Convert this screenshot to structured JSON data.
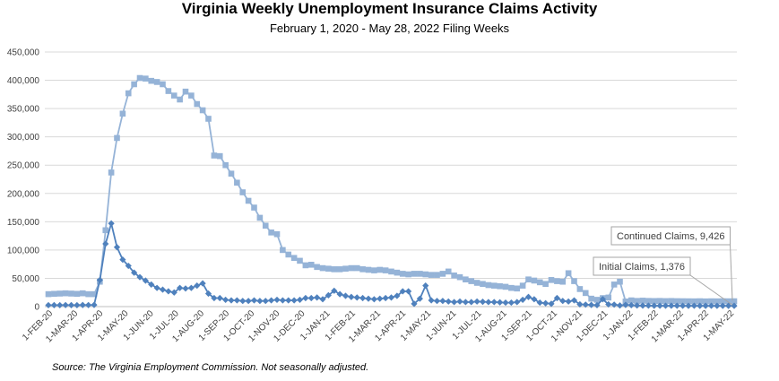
{
  "title": "Virginia Weekly Unemployment Insurance Claims Activity",
  "subtitle": "February 1, 2020 - May 28, 2022 Filing Weeks",
  "source": "Source: The Virginia Employment Commission. Not seasonally adjusted.",
  "chart_data": {
    "type": "line",
    "ylim": [
      0,
      450000
    ],
    "yticks": [
      "0",
      "50,000",
      "100,000",
      "150,000",
      "200,000",
      "250,000",
      "300,000",
      "350,000",
      "400,000",
      "450,000"
    ],
    "xticks": [
      "1-FEB-20",
      "1-MAR-20",
      "1-APR-20",
      "1-MAY-20",
      "1-JUN-20",
      "1-JUL-20",
      "1-AUG-20",
      "1-SEP-20",
      "1-OCT-20",
      "1-NOV-20",
      "1-DEC-20",
      "1-JAN-21",
      "1-FEB-21",
      "1-MAR-21",
      "1-APR-21",
      "1-MAY-21",
      "1-JUN-21",
      "1-JUL-21",
      "1-AUG-21",
      "1-SEP-21",
      "1-OCT-21",
      "1-NOV-21",
      "1-DEC-21",
      "1-JAN-22",
      "1-FEB-22",
      "1-MAR-22",
      "1-APR-22",
      "1-MAY-22"
    ],
    "grid": true,
    "legend": "none",
    "annotations": [
      {
        "text": "Continued Claims, 9,426",
        "series": "continued"
      },
      {
        "text": "Initial Claims, 1,376",
        "series": "initial"
      }
    ],
    "series": [
      {
        "key": "continued",
        "color": "#95B3D7",
        "marker": "square",
        "values": [
          22000,
          22500,
          23000,
          23500,
          23000,
          22500,
          23500,
          22000,
          22000,
          44000,
          135000,
          237000,
          298000,
          341000,
          377000,
          393000,
          404000,
          403000,
          399000,
          397000,
          393000,
          381000,
          373000,
          366000,
          380000,
          373000,
          358000,
          347000,
          332000,
          267000,
          266000,
          250000,
          235000,
          219000,
          202000,
          187000,
          175000,
          157000,
          143000,
          131000,
          128000,
          100000,
          92000,
          86000,
          81000,
          73000,
          74000,
          70000,
          68000,
          67000,
          66000,
          66000,
          67000,
          68000,
          68000,
          66000,
          65000,
          64000,
          65000,
          64000,
          62000,
          60000,
          58000,
          57000,
          58000,
          58000,
          57000,
          56000,
          56000,
          58000,
          62000,
          55000,
          52000,
          48000,
          45000,
          42000,
          40000,
          38000,
          37000,
          36000,
          35000,
          33000,
          32000,
          37000,
          48000,
          46000,
          43000,
          40000,
          47000,
          45000,
          44000,
          59000,
          45000,
          31000,
          24000,
          14000,
          12000,
          15000,
          16000,
          39000,
          44000,
          9000,
          11000,
          10000,
          10500,
          10000,
          9800,
          10000,
          9700,
          9900,
          9600,
          9500,
          9400,
          9300,
          9500,
          9200,
          9400,
          9300,
          9500,
          9400,
          9426
        ]
      },
      {
        "key": "initial",
        "color": "#4F81BD",
        "marker": "diamond",
        "values": [
          2500,
          2600,
          2500,
          2700,
          2600,
          2500,
          2800,
          2700,
          3000,
          47000,
          111000,
          147000,
          105000,
          83000,
          72000,
          60000,
          52000,
          46000,
          39000,
          33000,
          30000,
          27000,
          25000,
          33000,
          32000,
          33000,
          37000,
          41000,
          23000,
          15000,
          15000,
          12000,
          11000,
          11000,
          10000,
          10000,
          11000,
          10000,
          10000,
          11000,
          12000,
          11000,
          11000,
          11000,
          12000,
          15000,
          15000,
          16000,
          13000,
          20000,
          28000,
          22000,
          19000,
          17000,
          16000,
          15000,
          14000,
          13000,
          14000,
          15000,
          16000,
          19000,
          27000,
          27000,
          5000,
          14000,
          37000,
          11000,
          10000,
          10000,
          9000,
          8000,
          9000,
          8000,
          8000,
          9000,
          8500,
          8000,
          8000,
          7500,
          7000,
          7000,
          8000,
          12000,
          17000,
          13000,
          7000,
          6000,
          5000,
          15000,
          10000,
          9000,
          11000,
          4000,
          3500,
          3000,
          2500,
          13000,
          4000,
          3500,
          2000,
          3000,
          2500,
          2000,
          1800,
          1700,
          1600,
          1500,
          1500,
          1600,
          1500,
          1450,
          1400,
          1500,
          1400,
          1380,
          1450,
          1400,
          1390,
          1380,
          1376
        ]
      }
    ]
  }
}
